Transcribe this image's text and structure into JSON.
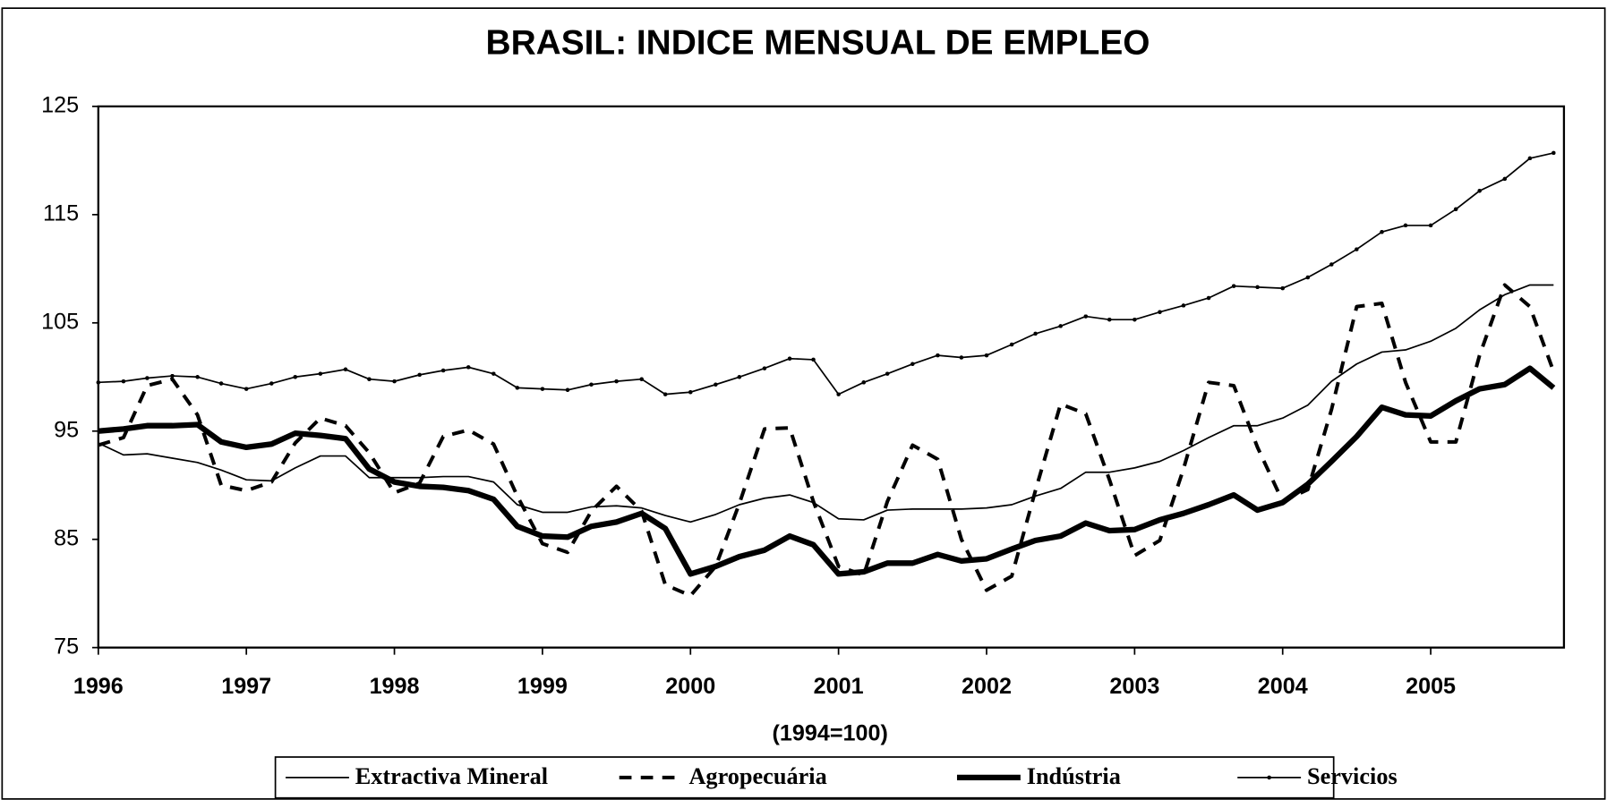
{
  "chart_data": {
    "type": "line",
    "title": "BRASIL: INDICE MENSUAL DE EMPLEO",
    "x_label": "(1994=100)",
    "x": [
      1996,
      1996.17,
      1996.33,
      1996.5,
      1996.67,
      1996.83,
      1997,
      1997.17,
      1997.33,
      1997.5,
      1997.67,
      1997.83,
      1998,
      1998.17,
      1998.33,
      1998.5,
      1998.67,
      1998.83,
      1999,
      1999.17,
      1999.33,
      1999.5,
      1999.67,
      1999.83,
      2000,
      2000.17,
      2000.33,
      2000.5,
      2000.67,
      2000.83,
      2001,
      2001.17,
      2001.33,
      2001.5,
      2001.67,
      2001.83,
      2002,
      2002.17,
      2002.33,
      2002.5,
      2002.67,
      2002.83,
      2003,
      2003.17,
      2003.33,
      2003.5,
      2003.67,
      2003.83,
      2004,
      2004.17,
      2004.33,
      2004.5,
      2004.67,
      2004.83,
      2005,
      2005.17,
      2005.33,
      2005.5,
      2005.67,
      2005.83
    ],
    "series": [
      {
        "name": "Extractiva Mineral",
        "color": "#000000",
        "values": [
          93.9,
          92.8,
          92.9,
          92.5,
          92.1,
          91.4,
          90.5,
          90.4,
          91.6,
          92.7,
          92.7,
          90.7,
          90.7,
          90.7,
          90.8,
          90.8,
          90.3,
          88.2,
          87.5,
          87.5,
          88,
          88.1,
          87.9,
          87.2,
          86.6,
          87.3,
          88.2,
          88.8,
          89.1,
          88.4,
          86.9,
          86.8,
          87.7,
          87.8,
          87.8,
          87.8,
          87.9,
          88.2,
          89,
          89.7,
          91.2,
          91.2,
          91.6,
          92.2,
          93.2,
          94.4,
          95.5,
          95.5,
          96.2,
          97.4,
          99.6,
          101.2,
          102.3,
          102.5,
          103.3,
          104.5,
          106.2,
          107.6,
          108.5,
          108.5
        ]
      },
      {
        "name": "Agropecuária",
        "color": "#000000",
        "values": [
          93.7,
          94.4,
          99.2,
          99.8,
          96.5,
          90.0,
          89.5,
          90.3,
          93.9,
          96.2,
          95.5,
          93.0,
          89.3,
          90.2,
          94.5,
          95.1,
          93.8,
          89.0,
          84.6,
          83.8,
          87.6,
          89.9,
          87.6,
          80.8,
          79.8,
          82.5,
          88.3,
          95.2,
          95.3,
          88.5,
          82.5,
          81.7,
          88.5,
          93.7,
          92.4,
          85.0,
          80.3,
          81.6,
          89.5,
          97.5,
          96.6,
          90.5,
          83.5,
          84.9,
          91.5,
          99.5,
          99.2,
          93.5,
          88.5,
          89.6,
          97.0,
          106.5,
          106.8,
          99.5,
          94,
          94,
          102,
          108.5,
          106.5,
          100.5
        ]
      },
      {
        "name": "Indústria",
        "color": "#000000",
        "values": [
          95.0,
          95.2,
          95.5,
          95.5,
          95.6,
          94.0,
          93.5,
          93.8,
          94.8,
          94.6,
          94.3,
          91.5,
          90.3,
          89.9,
          89.8,
          89.5,
          88.7,
          86.2,
          85.3,
          85.2,
          86.2,
          86.6,
          87.4,
          86.0,
          81.8,
          82.5,
          83.4,
          84.0,
          85.3,
          84.5,
          81.8,
          82.0,
          82.8,
          82.8,
          83.6,
          83.0,
          83.2,
          84.1,
          84.9,
          85.3,
          86.5,
          85.8,
          85.9,
          86.8,
          87.4,
          88.2,
          89.1,
          87.7,
          88.4,
          90.1,
          92.2,
          94.5,
          97.2,
          96.5,
          96.4,
          97.8,
          98.9,
          99.3,
          100.8,
          99.0
        ]
      },
      {
        "name": "Servicios",
        "color": "#000000",
        "values": [
          99.5,
          99.6,
          99.9,
          100.1,
          100,
          99.4,
          98.9,
          99.4,
          100,
          100.3,
          100.7,
          99.8,
          99.6,
          100.2,
          100.6,
          100.9,
          100.3,
          99.0,
          98.9,
          98.8,
          99.3,
          99.6,
          99.8,
          98.4,
          98.6,
          99.3,
          100,
          100.8,
          101.7,
          101.6,
          98.4,
          99.5,
          100.3,
          101.2,
          102,
          101.8,
          102.0,
          103.0,
          104.0,
          104.7,
          105.6,
          105.3,
          105.3,
          106.0,
          106.6,
          107.3,
          108.4,
          108.3,
          108.2,
          109.2,
          110.4,
          111.8,
          113.4,
          114.0,
          114.0,
          115.5,
          117.2,
          118.3,
          120.2,
          120.7
        ]
      }
    ],
    "xlim": [
      1996,
      2005.9
    ],
    "xticks": [
      1996,
      1997,
      1998,
      1999,
      2000,
      2001,
      2002,
      2003,
      2004,
      2005
    ],
    "ylim": [
      75,
      125
    ],
    "yticks": [
      75,
      85,
      95,
      105,
      115,
      125
    ],
    "grid": false,
    "legend": "bottom"
  }
}
